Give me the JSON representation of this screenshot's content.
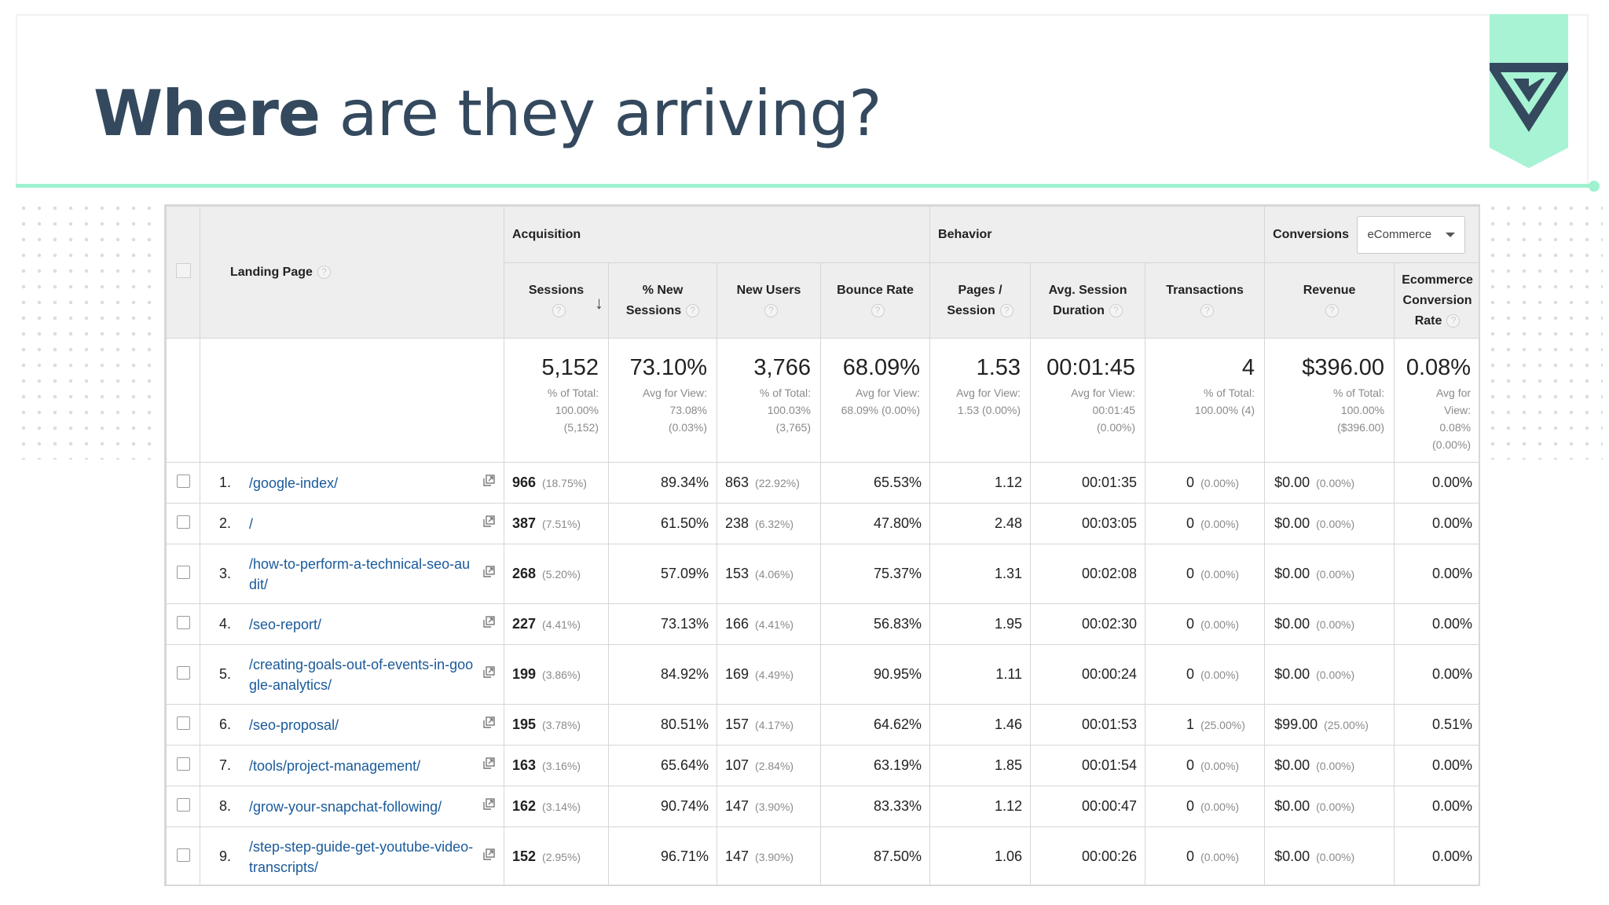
{
  "slide": {
    "title_bold": "Where",
    "title_rest": " are they arriving?"
  },
  "colors": {
    "title": "#34495e",
    "accent": "#9ff1d0",
    "link": "#1a5a9a",
    "header_bg": "#eeeeee"
  },
  "table": {
    "groups": {
      "landing_page": "Landing Page",
      "acquisition": "Acquisition",
      "behavior": "Behavior",
      "conversions": "Conversions",
      "conversions_select": "eCommerce"
    },
    "columns": [
      {
        "key": "sessions",
        "line1": "Sessions",
        "line2": ""
      },
      {
        "key": "new_sessions",
        "line1": "% New",
        "line2": "Sessions"
      },
      {
        "key": "new_users",
        "line1": "New Users",
        "line2": ""
      },
      {
        "key": "bounce_rate",
        "line1": "Bounce Rate",
        "line2": ""
      },
      {
        "key": "pages_session",
        "line1": "Pages /",
        "line2": "Session"
      },
      {
        "key": "avg_duration",
        "line1": "Avg. Session",
        "line2": "Duration"
      },
      {
        "key": "transactions",
        "line1": "Transactions",
        "line2": ""
      },
      {
        "key": "revenue",
        "line1": "Revenue",
        "line2": ""
      },
      {
        "key": "ecr",
        "line1": "Ecommerce",
        "line2": "Conversion",
        "line3": "Rate"
      }
    ],
    "help_glyph": "?",
    "totals": [
      {
        "big": "5,152",
        "sub": [
          "% of Total:",
          "100.00%",
          "(5,152)"
        ]
      },
      {
        "big": "73.10%",
        "sub": [
          "Avg for View:",
          "73.08%",
          "(0.03%)"
        ]
      },
      {
        "big": "3,766",
        "sub": [
          "% of Total:",
          "100.03%",
          "(3,765)"
        ]
      },
      {
        "big": "68.09%",
        "sub": [
          "Avg for View:",
          "68.09% (0.00%)"
        ]
      },
      {
        "big": "1.53",
        "sub": [
          "Avg for View:",
          "1.53 (0.00%)"
        ]
      },
      {
        "big": "00:01:45",
        "sub": [
          "Avg for View:",
          "00:01:45",
          "(0.00%)"
        ]
      },
      {
        "big": "4",
        "sub": [
          "% of Total:",
          "100.00% (4)"
        ]
      },
      {
        "big": "$396.00",
        "sub": [
          "% of Total:",
          "100.00%",
          "($396.00)"
        ]
      },
      {
        "big": "0.08%",
        "sub": [
          "Avg for",
          "View:",
          "0.08%",
          "(0.00%)"
        ]
      }
    ],
    "rows": [
      {
        "num": "1.",
        "path": "/google-index/",
        "sessions": "966",
        "sessions_pct": "(18.75%)",
        "new_sessions": "89.34%",
        "new_users": "863",
        "new_users_pct": "(22.92%)",
        "bounce": "65.53%",
        "pages": "1.12",
        "duration": "00:01:35",
        "tx": "0",
        "tx_pct": "(0.00%)",
        "rev": "$0.00",
        "rev_pct": "(0.00%)",
        "ecr": "0.00%"
      },
      {
        "num": "2.",
        "path": "/",
        "sessions": "387",
        "sessions_pct": "(7.51%)",
        "new_sessions": "61.50%",
        "new_users": "238",
        "new_users_pct": "(6.32%)",
        "bounce": "47.80%",
        "pages": "2.48",
        "duration": "00:03:05",
        "tx": "0",
        "tx_pct": "(0.00%)",
        "rev": "$0.00",
        "rev_pct": "(0.00%)",
        "ecr": "0.00%"
      },
      {
        "num": "3.",
        "path": "/how-to-perform-a-technical-seo-audit/",
        "sessions": "268",
        "sessions_pct": "(5.20%)",
        "new_sessions": "57.09%",
        "new_users": "153",
        "new_users_pct": "(4.06%)",
        "bounce": "75.37%",
        "pages": "1.31",
        "duration": "00:02:08",
        "tx": "0",
        "tx_pct": "(0.00%)",
        "rev": "$0.00",
        "rev_pct": "(0.00%)",
        "ecr": "0.00%"
      },
      {
        "num": "4.",
        "path": "/seo-report/",
        "sessions": "227",
        "sessions_pct": "(4.41%)",
        "new_sessions": "73.13%",
        "new_users": "166",
        "new_users_pct": "(4.41%)",
        "bounce": "56.83%",
        "pages": "1.95",
        "duration": "00:02:30",
        "tx": "0",
        "tx_pct": "(0.00%)",
        "rev": "$0.00",
        "rev_pct": "(0.00%)",
        "ecr": "0.00%"
      },
      {
        "num": "5.",
        "path": "/creating-goals-out-of-events-in-google-analytics/",
        "sessions": "199",
        "sessions_pct": "(3.86%)",
        "new_sessions": "84.92%",
        "new_users": "169",
        "new_users_pct": "(4.49%)",
        "bounce": "90.95%",
        "pages": "1.11",
        "duration": "00:00:24",
        "tx": "0",
        "tx_pct": "(0.00%)",
        "rev": "$0.00",
        "rev_pct": "(0.00%)",
        "ecr": "0.00%"
      },
      {
        "num": "6.",
        "path": "/seo-proposal/",
        "sessions": "195",
        "sessions_pct": "(3.78%)",
        "new_sessions": "80.51%",
        "new_users": "157",
        "new_users_pct": "(4.17%)",
        "bounce": "64.62%",
        "pages": "1.46",
        "duration": "00:01:53",
        "tx": "1",
        "tx_pct": "(25.00%)",
        "rev": "$99.00",
        "rev_pct": "(25.00%)",
        "ecr": "0.51%"
      },
      {
        "num": "7.",
        "path": "/tools/project-management/",
        "sessions": "163",
        "sessions_pct": "(3.16%)",
        "new_sessions": "65.64%",
        "new_users": "107",
        "new_users_pct": "(2.84%)",
        "bounce": "63.19%",
        "pages": "1.85",
        "duration": "00:01:54",
        "tx": "0",
        "tx_pct": "(0.00%)",
        "rev": "$0.00",
        "rev_pct": "(0.00%)",
        "ecr": "0.00%"
      },
      {
        "num": "8.",
        "path": "/grow-your-snapchat-following/",
        "sessions": "162",
        "sessions_pct": "(3.14%)",
        "new_sessions": "90.74%",
        "new_users": "147",
        "new_users_pct": "(3.90%)",
        "bounce": "83.33%",
        "pages": "1.12",
        "duration": "00:00:47",
        "tx": "0",
        "tx_pct": "(0.00%)",
        "rev": "$0.00",
        "rev_pct": "(0.00%)",
        "ecr": "0.00%"
      },
      {
        "num": "9.",
        "path": "/step-step-guide-get-youtube-video-transcripts/",
        "sessions": "152",
        "sessions_pct": "(2.95%)",
        "new_sessions": "96.71%",
        "new_users": "147",
        "new_users_pct": "(3.90%)",
        "bounce": "87.50%",
        "pages": "1.06",
        "duration": "00:00:26",
        "tx": "0",
        "tx_pct": "(0.00%)",
        "rev": "$0.00",
        "rev_pct": "(0.00%)",
        "ecr": "0.00%"
      }
    ]
  }
}
